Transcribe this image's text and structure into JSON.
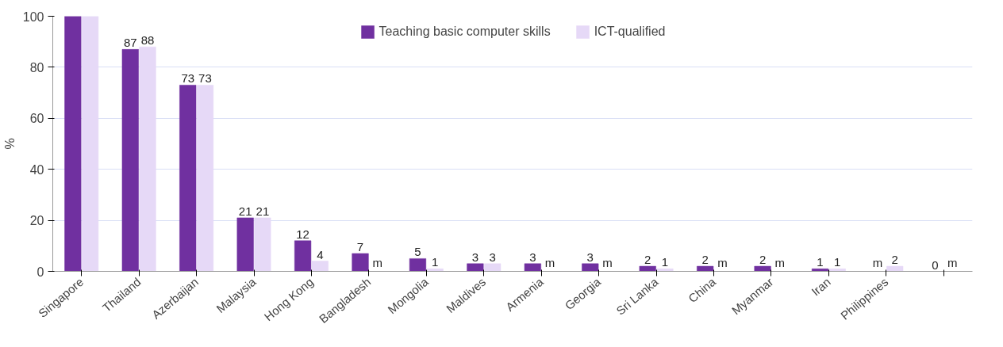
{
  "chart_data": {
    "type": "bar",
    "ylabel": "%",
    "categories": [
      "Singapore",
      "Thailand",
      "Azerbaijan",
      "Malaysia",
      "Hong Kong",
      "Bangladesh",
      "Mongolia",
      "Maldives",
      "Armenia",
      "Georgia",
      "Sri Lanka",
      "China",
      "Myanmar",
      "Iran",
      "Philippines",
      null
    ],
    "series": [
      {
        "name": "Teaching basic computer skills",
        "color": "#7030a0",
        "values": [
          100,
          87,
          73,
          21,
          12,
          7,
          5,
          3,
          3,
          3,
          2,
          2,
          2,
          1,
          null,
          0
        ],
        "value_labels": [
          null,
          "87",
          "73",
          "21",
          "12",
          "7",
          "5",
          "3",
          "3",
          "3",
          "2",
          "2",
          "2",
          "1",
          "m",
          "0"
        ]
      },
      {
        "name": "ICT-qualified",
        "color": "#e6d9f7",
        "values": [
          100,
          88,
          73,
          21,
          4,
          null,
          1,
          3,
          null,
          null,
          1,
          null,
          null,
          1,
          2,
          null
        ],
        "value_labels": [
          null,
          "88",
          "73",
          "21",
          "4",
          "m",
          "1",
          "3",
          "m",
          "m",
          "1",
          "m",
          "m",
          "1",
          "2",
          "m"
        ]
      }
    ],
    "ylim": [
      0,
      100
    ],
    "yticks": [
      0,
      20,
      40,
      60,
      80,
      100
    ],
    "grid": "y",
    "legend": "top"
  }
}
